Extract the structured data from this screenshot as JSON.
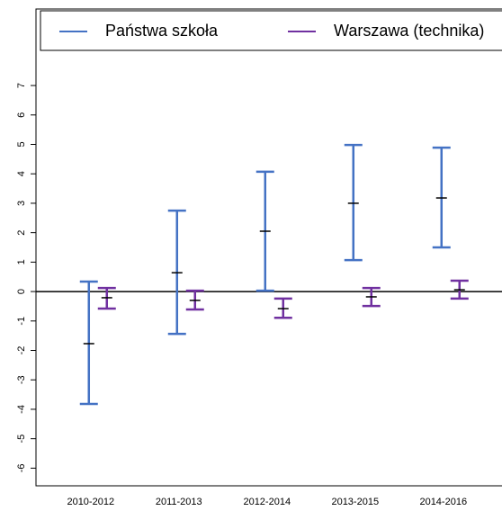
{
  "chart_data": {
    "type": "errorbar",
    "categories": [
      "2010-2012",
      "2011-2013",
      "2012-2014",
      "2013-2015",
      "2014-2016"
    ],
    "series": [
      {
        "name": "Państwa szkoła",
        "color": "#4472c4",
        "values": [
          -1.77,
          0.64,
          2.05,
          3.0,
          3.18
        ],
        "low": [
          -3.82,
          -1.44,
          0.03,
          1.07,
          1.5
        ],
        "high": [
          0.34,
          2.75,
          4.07,
          4.98,
          4.89
        ]
      },
      {
        "name": "Warszawa (technika)",
        "color": "#7030a0",
        "values": [
          -0.21,
          -0.3,
          -0.58,
          -0.18,
          0.06
        ],
        "low": [
          -0.58,
          -0.61,
          -0.89,
          -0.49,
          -0.24
        ],
        "high": [
          0.12,
          0.03,
          -0.24,
          0.12,
          0.37
        ]
      }
    ],
    "ylim": [
      -6.6,
      9.6
    ],
    "yticks": [
      -6,
      -5,
      -4,
      -3,
      -2,
      -1,
      0,
      1,
      2,
      3,
      4,
      5,
      6,
      7
    ],
    "hline": 0,
    "legend": "top"
  }
}
